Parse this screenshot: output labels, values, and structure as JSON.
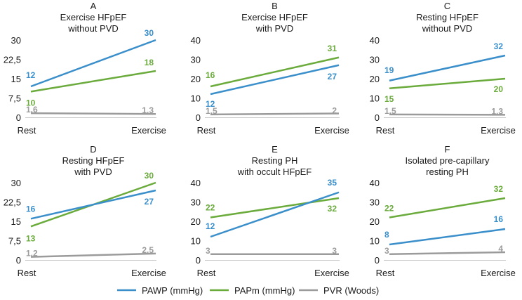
{
  "colors": {
    "PAWP": "#3a8fcb",
    "PAPm": "#6aab3c",
    "PVR": "#9b9b9b",
    "axis": "#c8c8c8",
    "text": "#1a1a1a"
  },
  "legend": [
    {
      "key": "PAWP",
      "label": "PAWP (mmHg)"
    },
    {
      "key": "PAPm",
      "label": "PAPm (mmHg)"
    },
    {
      "key": "PVR",
      "label": "PVR (Woods)"
    }
  ],
  "chart_data": [
    {
      "type": "line",
      "letter": "A",
      "title": [
        "Exercise HFpEF",
        "without PVD"
      ],
      "categories": [
        "Rest",
        "Exercise"
      ],
      "ylim": [
        0,
        30
      ],
      "yticks": [
        "0",
        "7,5",
        "15",
        "22,5",
        "30"
      ],
      "series": [
        {
          "name": "PAWP (mmHg)",
          "key": "PAWP",
          "values": [
            12,
            30
          ]
        },
        {
          "name": "PAPm (mmHg)",
          "key": "PAPm",
          "values": [
            10,
            18
          ]
        },
        {
          "name": "PVR (Woods)",
          "key": "PVR",
          "values": [
            1.6,
            1.3
          ]
        }
      ],
      "data_labels": {
        "PAWP": [
          "12",
          "30"
        ],
        "PAPm": [
          "10",
          "18"
        ],
        "PVR": [
          "1.6",
          "1.3"
        ]
      }
    },
    {
      "type": "line",
      "letter": "B",
      "title": [
        "Exercise HFpEF",
        "with PVD"
      ],
      "categories": [
        "Rest",
        "Exercise"
      ],
      "ylim": [
        0,
        40
      ],
      "yticks": [
        "0",
        "10",
        "20",
        "30",
        "40"
      ],
      "series": [
        {
          "name": "PAWP (mmHg)",
          "key": "PAWP",
          "values": [
            12,
            27
          ]
        },
        {
          "name": "PAPm (mmHg)",
          "key": "PAPm",
          "values": [
            16,
            31
          ]
        },
        {
          "name": "PVR (Woods)",
          "key": "PVR",
          "values": [
            1.5,
            2
          ]
        }
      ],
      "data_labels": {
        "PAWP": [
          "12",
          "27"
        ],
        "PAPm": [
          "16",
          "31"
        ],
        "PVR": [
          "1.5",
          "2"
        ]
      }
    },
    {
      "type": "line",
      "letter": "C",
      "title": [
        "Resting HFpEF",
        "without PVD"
      ],
      "categories": [
        "Rest",
        "Exercise"
      ],
      "ylim": [
        0,
        40
      ],
      "yticks": [
        "0",
        "10",
        "20",
        "30",
        "40"
      ],
      "series": [
        {
          "name": "PAWP (mmHg)",
          "key": "PAWP",
          "values": [
            19,
            32
          ]
        },
        {
          "name": "PAPm (mmHg)",
          "key": "PAPm",
          "values": [
            15,
            20
          ]
        },
        {
          "name": "PVR (Woods)",
          "key": "PVR",
          "values": [
            1.5,
            1.3
          ]
        }
      ],
      "data_labels": {
        "PAWP": [
          "19",
          "32"
        ],
        "PAPm": [
          "15",
          "20"
        ],
        "PVR": [
          "1.5",
          "1.3"
        ]
      }
    },
    {
      "type": "line",
      "letter": "D",
      "title": [
        "Resting HFpEF",
        "with PVD"
      ],
      "categories": [
        "Rest",
        "Exercise"
      ],
      "ylim": [
        0,
        30
      ],
      "yticks": [
        "0",
        "7,5",
        "15",
        "22,5",
        "30"
      ],
      "series": [
        {
          "name": "PAWP (mmHg)",
          "key": "PAWP",
          "values": [
            16,
            27
          ]
        },
        {
          "name": "PAPm (mmHg)",
          "key": "PAPm",
          "values": [
            13,
            30
          ]
        },
        {
          "name": "PVR (Woods)",
          "key": "PVR",
          "values": [
            1.2,
            2.5
          ]
        }
      ],
      "data_labels": {
        "PAWP": [
          "16",
          "27"
        ],
        "PAPm": [
          "13",
          "30"
        ],
        "PVR": [
          "1.2",
          "2.5"
        ]
      }
    },
    {
      "type": "line",
      "letter": "E",
      "title": [
        "Resting PH",
        "with occult HFpEF"
      ],
      "categories": [
        "Rest",
        "Exercise"
      ],
      "ylim": [
        0,
        40
      ],
      "yticks": [
        "0",
        "10",
        "20",
        "30",
        "40"
      ],
      "series": [
        {
          "name": "PAWP (mmHg)",
          "key": "PAWP",
          "values": [
            12,
            35
          ]
        },
        {
          "name": "PAPm (mmHg)",
          "key": "PAPm",
          "values": [
            22,
            32
          ]
        },
        {
          "name": "PVR (Woods)",
          "key": "PVR",
          "values": [
            3,
            3
          ]
        }
      ],
      "data_labels": {
        "PAWP": [
          "12",
          "35"
        ],
        "PAPm": [
          "22",
          "32"
        ],
        "PVR": [
          "3",
          "3"
        ]
      }
    },
    {
      "type": "line",
      "letter": "F",
      "title": [
        "Isolated pre-capillary",
        "resting PH"
      ],
      "categories": [
        "Rest",
        "Exercise"
      ],
      "ylim": [
        0,
        40
      ],
      "yticks": [
        "0",
        "10",
        "20",
        "30",
        "40"
      ],
      "series": [
        {
          "name": "PAWP (mmHg)",
          "key": "PAWP",
          "values": [
            8,
            16
          ]
        },
        {
          "name": "PAPm (mmHg)",
          "key": "PAPm",
          "values": [
            22,
            32
          ]
        },
        {
          "name": "PVR (Woods)",
          "key": "PVR",
          "values": [
            3,
            4
          ]
        }
      ],
      "data_labels": {
        "PAWP": [
          "8",
          "16"
        ],
        "PAPm": [
          "22",
          "32"
        ],
        "PVR": [
          "3",
          "4"
        ]
      }
    }
  ]
}
